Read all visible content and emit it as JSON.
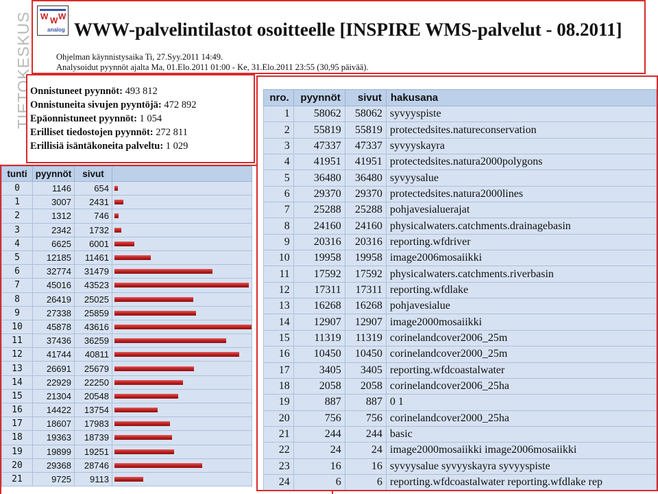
{
  "brand": {
    "side_text": "TIETOKESKUS",
    "colors": {
      "panel_border": "#d92b2b",
      "header_bg": "#bdd0ea",
      "cell_bg": "#d6e2f2",
      "bar": "#b61d1d"
    }
  },
  "header": {
    "title": "WWW-palvelintilastot osoitteelle [INSPIRE WMS-palvelut - 08.2011]",
    "program_start": "Ohjelman käynnistysaika Ti, 27.Syy.2011 14:49.",
    "analyzed_range": "Analysoidut pyynnöt ajalta Ma, 01.Elo.2011 01:00 - Ke, 31.Elo.2011 23:55 (30,95 päivää).",
    "logo": {
      "letters": [
        "W",
        "W",
        "W"
      ],
      "caption": "analog"
    }
  },
  "summary": [
    {
      "label": "Onnistuneet pyynnöt:",
      "value": "493 812"
    },
    {
      "label": "Onnistuneita sivujen pyyntöjä:",
      "value": "472 892"
    },
    {
      "label": "Epäonnistuneet pyynnöt:",
      "value": "1 054"
    },
    {
      "label": "Erilliset tiedostojen pyynnöt:",
      "value": "272 811"
    },
    {
      "label": "Erillisiä isäntäkoneita palveltu:",
      "value": "1 029"
    }
  ],
  "hourly": {
    "headers": [
      "tunti",
      "pyynnöt",
      "sivut",
      ""
    ],
    "rows": [
      {
        "hour": "0",
        "requests": "1146",
        "pages": "654",
        "req": 1146
      },
      {
        "hour": "1",
        "requests": "3007",
        "pages": "2431",
        "req": 3007
      },
      {
        "hour": "2",
        "requests": "1312",
        "pages": "746",
        "req": 1312
      },
      {
        "hour": "3",
        "requests": "2342",
        "pages": "1732",
        "req": 2342
      },
      {
        "hour": "4",
        "requests": "6625",
        "pages": "6001",
        "req": 6625
      },
      {
        "hour": "5",
        "requests": "12185",
        "pages": "11461",
        "req": 12185
      },
      {
        "hour": "6",
        "requests": "32774",
        "pages": "31479",
        "req": 32774
      },
      {
        "hour": "7",
        "requests": "45016",
        "pages": "43523",
        "req": 45016
      },
      {
        "hour": "8",
        "requests": "26419",
        "pages": "25025",
        "req": 26419
      },
      {
        "hour": "9",
        "requests": "27338",
        "pages": "25859",
        "req": 27338
      },
      {
        "hour": "10",
        "requests": "45878",
        "pages": "43616",
        "req": 45878
      },
      {
        "hour": "11",
        "requests": "37436",
        "pages": "36259",
        "req": 37436
      },
      {
        "hour": "12",
        "requests": "41744",
        "pages": "40811",
        "req": 41744
      },
      {
        "hour": "13",
        "requests": "26691",
        "pages": "25679",
        "req": 26691
      },
      {
        "hour": "14",
        "requests": "22929",
        "pages": "22250",
        "req": 22929
      },
      {
        "hour": "15",
        "requests": "21304",
        "pages": "20548",
        "req": 21304
      },
      {
        "hour": "16",
        "requests": "14422",
        "pages": "13754",
        "req": 14422
      },
      {
        "hour": "17",
        "requests": "18607",
        "pages": "17983",
        "req": 18607
      },
      {
        "hour": "18",
        "requests": "19363",
        "pages": "18739",
        "req": 19363
      },
      {
        "hour": "19",
        "requests": "19899",
        "pages": "19251",
        "req": 19899
      },
      {
        "hour": "20",
        "requests": "29368",
        "pages": "28746",
        "req": 29368
      },
      {
        "hour": "21",
        "requests": "9725",
        "pages": "9113",
        "req": 9725
      }
    ]
  },
  "keywords": {
    "headers": [
      "nro.",
      "pyynnöt",
      "sivut",
      "hakusana"
    ],
    "rows": [
      {
        "nro": "1",
        "requests": "58062",
        "pages": "58062",
        "keyword": "syvyyspiste"
      },
      {
        "nro": "2",
        "requests": "55819",
        "pages": "55819",
        "keyword": "protectedsites.natureconservation"
      },
      {
        "nro": "3",
        "requests": "47337",
        "pages": "47337",
        "keyword": "syvyyskayra"
      },
      {
        "nro": "4",
        "requests": "41951",
        "pages": "41951",
        "keyword": "protectedsites.natura2000polygons"
      },
      {
        "nro": "5",
        "requests": "36480",
        "pages": "36480",
        "keyword": "syvyysalue"
      },
      {
        "nro": "6",
        "requests": "29370",
        "pages": "29370",
        "keyword": "protectedsites.natura2000lines"
      },
      {
        "nro": "7",
        "requests": "25288",
        "pages": "25288",
        "keyword": "pohjavesialuerajat"
      },
      {
        "nro": "8",
        "requests": "24160",
        "pages": "24160",
        "keyword": "physicalwaters.catchments.drainagebasin"
      },
      {
        "nro": "9",
        "requests": "20316",
        "pages": "20316",
        "keyword": "reporting.wfdriver"
      },
      {
        "nro": "10",
        "requests": "19958",
        "pages": "19958",
        "keyword": "image2006mosaiikki"
      },
      {
        "nro": "11",
        "requests": "17592",
        "pages": "17592",
        "keyword": "physicalwaters.catchments.riverbasin"
      },
      {
        "nro": "12",
        "requests": "17311",
        "pages": "17311",
        "keyword": "reporting.wfdlake"
      },
      {
        "nro": "13",
        "requests": "16268",
        "pages": "16268",
        "keyword": "pohjavesialue"
      },
      {
        "nro": "14",
        "requests": "12907",
        "pages": "12907",
        "keyword": "image2000mosaiikki"
      },
      {
        "nro": "15",
        "requests": "11319",
        "pages": "11319",
        "keyword": "corinelandcover2006_25m"
      },
      {
        "nro": "16",
        "requests": "10450",
        "pages": "10450",
        "keyword": "corinelandcover2000_25m"
      },
      {
        "nro": "17",
        "requests": "3405",
        "pages": "3405",
        "keyword": "reporting.wfdcoastalwater"
      },
      {
        "nro": "18",
        "requests": "2058",
        "pages": "2058",
        "keyword": "corinelandcover2006_25ha"
      },
      {
        "nro": "19",
        "requests": "887",
        "pages": "887",
        "keyword": "0 1"
      },
      {
        "nro": "20",
        "requests": "756",
        "pages": "756",
        "keyword": "corinelandcover2000_25ha"
      },
      {
        "nro": "21",
        "requests": "244",
        "pages": "244",
        "keyword": "basic"
      },
      {
        "nro": "22",
        "requests": "24",
        "pages": "24",
        "keyword": "image2000mosaiikki image2006mosaiikki"
      },
      {
        "nro": "23",
        "requests": "16",
        "pages": "16",
        "keyword": "syvyysalue syvyyskayra syvyyspiste"
      },
      {
        "nro": "24",
        "requests": "6",
        "pages": "6",
        "keyword": "reporting.wfdcoastalwater reporting.wfdlake rep"
      }
    ]
  }
}
